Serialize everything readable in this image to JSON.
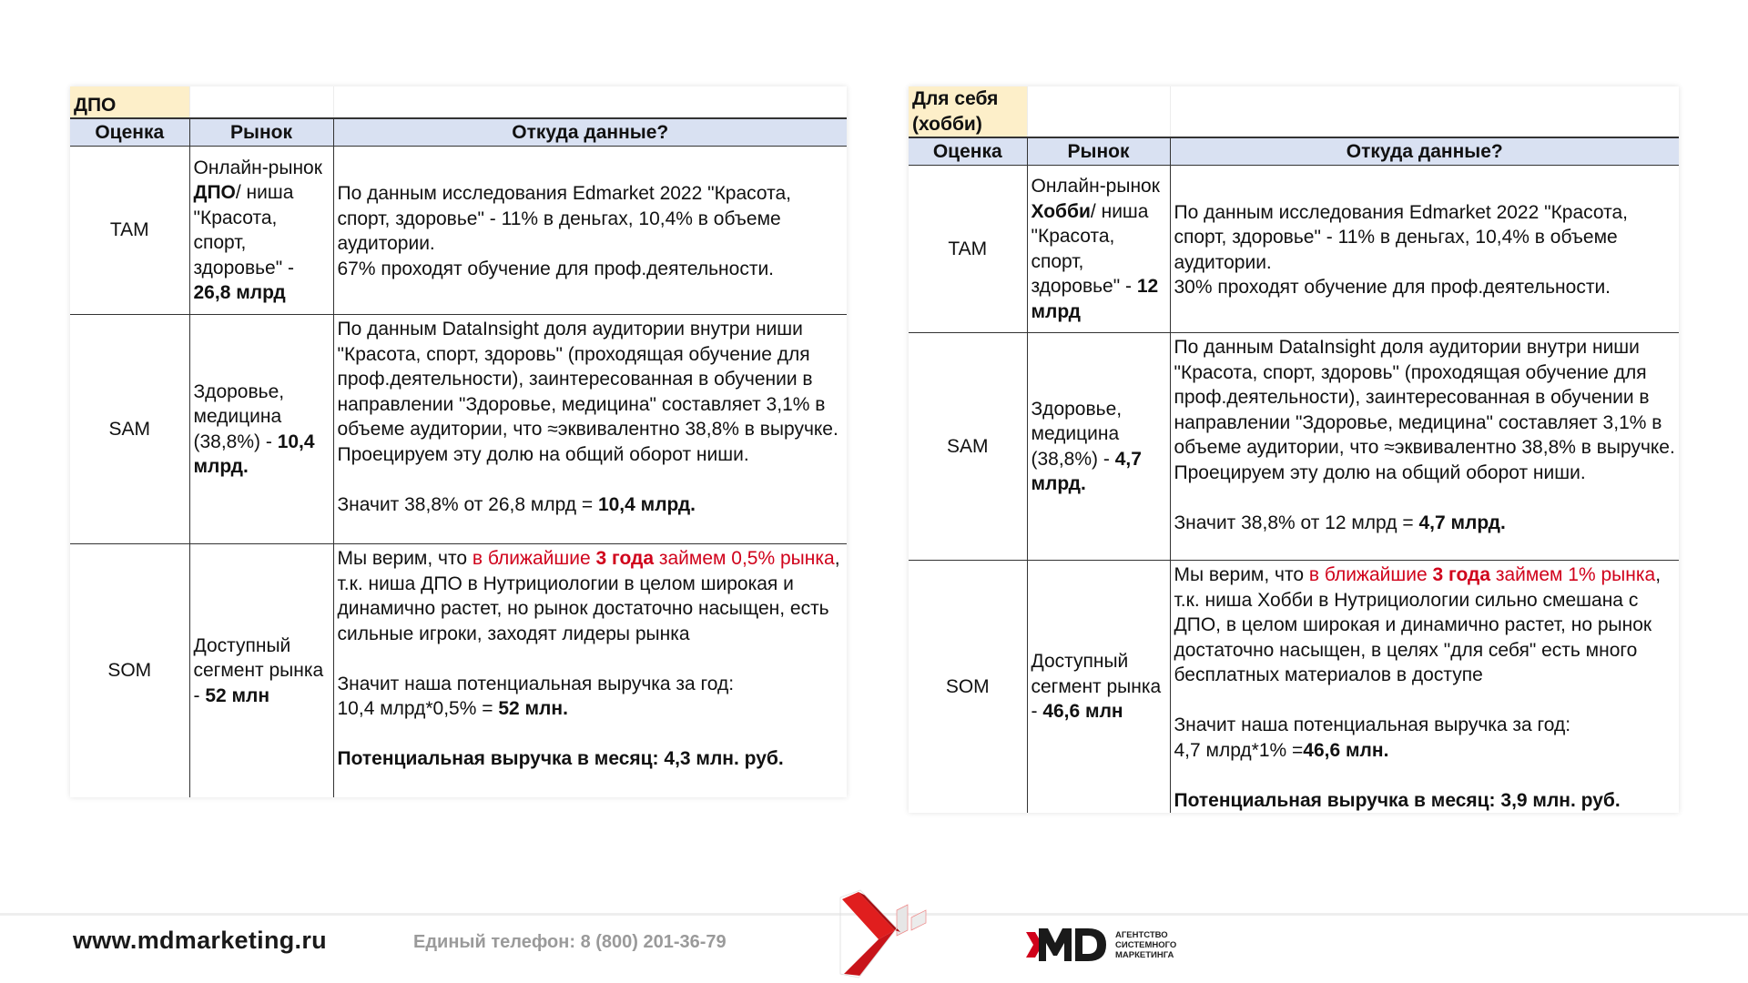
{
  "headers": {
    "col1": "Оценка",
    "col2": "Рынок",
    "col3": "Откуда данные?"
  },
  "tables": [
    {
      "title": "ДПО",
      "rows": [
        {
          "label": "TAM",
          "market": [
            [
              {
                "t": "Онлайн-рынок "
              },
              {
                "t": "ДПО",
                "b": true
              },
              {
                "t": "/ ниша \"Красота, спорт, здоровье\" - "
              },
              {
                "t": "26,8 млрд",
                "b": true
              }
            ]
          ],
          "source": [
            [
              {
                "t": "По данным исследования Edmarket 2022 \"Красота, спорт, здоровье\" - 11% в деньгах, 10,4% в объеме аудитории."
              }
            ],
            [
              {
                "t": "67% проходят обучение для проф.деятельности."
              }
            ]
          ]
        },
        {
          "label": "SAM",
          "market": [
            [
              {
                "t": "Здоровье, медицина (38,8%) - "
              },
              {
                "t": "10,4 млрд.",
                "b": true
              }
            ]
          ],
          "source": [
            [
              {
                "t": "По данным DataInsight доля аудитории внутри ниши \"Красота, спорт, здоровь\" (проходящая обучение для проф.деятельности), заинтересованная в обучении в направлении \"Здоровье, медицина\" составляет 3,1% в объеме аудитории, что ≈эквивалентно 38,8% в выручке. Проецируем эту долю на общий оборот ниши."
              }
            ],
            [],
            [
              {
                "t": "Значит 38,8% от 26,8 млрд = "
              },
              {
                "t": "10,4 млрд.",
                "b": true
              }
            ]
          ]
        },
        {
          "label": "SOM",
          "market": [
            [
              {
                "t": "Доступный сегмент рынка - "
              },
              {
                "t": "52 млн",
                "b": true
              }
            ]
          ],
          "source": [
            [
              {
                "t": "Мы верим, что "
              },
              {
                "t": "в ближайшие ",
                "r": true
              },
              {
                "t": "3 года",
                "r": true,
                "b": true
              },
              {
                "t": " займем 0,5% рынка",
                "r": true
              },
              {
                "t": ", т.к. ниша ДПО в Нутрициологии в целом широкая и динамично растет, но рынок достаточно насыщен, есть сильные игроки, заходят лидеры рынка"
              }
            ],
            [],
            [
              {
                "t": "Значит наша потенциальная выручка за год:"
              }
            ],
            [
              {
                "t": "10,4 млрд*0,5% = "
              },
              {
                "t": "52 млн.",
                "b": true
              }
            ],
            [],
            [
              {
                "t": "Потенциальная выручка в месяц: 4,3 млн. руб.",
                "b": true
              }
            ]
          ]
        }
      ]
    },
    {
      "title": "Для себя (хобби)",
      "rows": [
        {
          "label": "TAM",
          "market": [
            [
              {
                "t": "Онлайн-рынок "
              },
              {
                "t": "Хобби",
                "b": true
              },
              {
                "t": "/ ниша \"Красота, спорт, здоровье\" - "
              },
              {
                "t": "12 млрд",
                "b": true
              }
            ]
          ],
          "source": [
            [
              {
                "t": "По данным исследования Edmarket 2022 \"Красота, спорт, здоровье\" - 11% в деньгах, 10,4% в объеме аудитории."
              }
            ],
            [
              {
                "t": "30% проходят обучение для проф.деятельности."
              }
            ]
          ]
        },
        {
          "label": "SAM",
          "market": [
            [
              {
                "t": "Здоровье, медицина (38,8%) - "
              },
              {
                "t": "4,7 млрд.",
                "b": true
              }
            ]
          ],
          "source": [
            [
              {
                "t": "По данным DataInsight доля аудитории внутри ниши \"Красота, спорт, здоровь\" (проходящая обучение для проф.деятельности), заинтересованная в обучении в направлении \"Здоровье, медицина\" составляет 3,1% в объеме аудитории, что ≈эквивалентно 38,8% в выручке. Проецируем эту долю на общий оборот ниши."
              }
            ],
            [],
            [
              {
                "t": "Значит 38,8% от 12 млрд = "
              },
              {
                "t": "4,7 млрд.",
                "b": true
              }
            ]
          ]
        },
        {
          "label": "SOM",
          "market": [
            [
              {
                "t": "Доступный сегмент рынка - "
              },
              {
                "t": "46,6 млн",
                "b": true
              }
            ]
          ],
          "source": [
            [
              {
                "t": "Мы верим, что "
              },
              {
                "t": "в ближайшие ",
                "r": true
              },
              {
                "t": "3 года",
                "r": true,
                "b": true
              },
              {
                "t": " займем 1% рынка",
                "r": true
              },
              {
                "t": ", т.к. ниша Хобби в Нутрициологии сильно смешана с ДПО, в целом широкая и динамично растет, но рынок достаточно насыщен, в целях \"для себя\" есть много бесплатных материалов в доступе"
              }
            ],
            [],
            [
              {
                "t": "Значит наша потенциальная выручка за год:"
              }
            ],
            [
              {
                "t": "4,7 млрд*1% ="
              },
              {
                "t": "46,6 млн.",
                "b": true
              }
            ],
            [],
            [
              {
                "t": "Потенциальная выручка в месяц: 3,9 млн. руб.",
                "b": true
              }
            ]
          ]
        }
      ]
    }
  ],
  "footer": {
    "website": "www.mdmarketing.ru",
    "phone": "Единый телефон: 8 (800) 201-36-79",
    "logo_text": [
      "АГЕНТСТВО",
      "СИСТЕМНОГО",
      "МАРКЕТИНГА"
    ],
    "brand_red": "#d0021b"
  }
}
